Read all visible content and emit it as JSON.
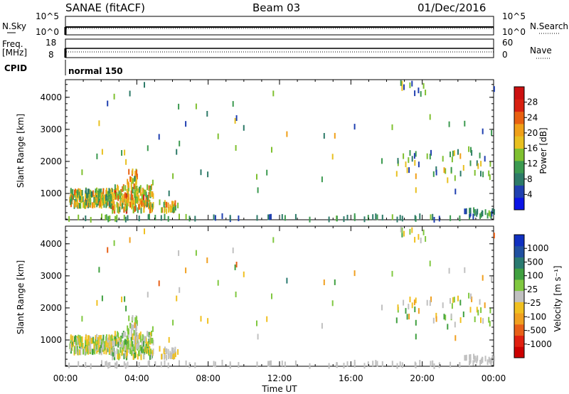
{
  "header": {
    "station": "SANAE (fitACF)",
    "beam": "Beam 03",
    "date": "01/Dec/2016"
  },
  "nsky_panel": {
    "left_label": "N.Sky",
    "left_ticks": [
      "10^5",
      "10^0"
    ],
    "right_label": "N.Search",
    "right_ticks": [
      "10^5",
      "10^0"
    ],
    "colors": {
      "trace": "#000000"
    }
  },
  "freq_panel": {
    "left_label_line1": "Freq.",
    "left_label_line2": "[MHz]",
    "left_ticks": [
      "18",
      "8"
    ],
    "right_label": "Nave",
    "right_ticks": [
      "60",
      "0"
    ]
  },
  "cpid_panel": {
    "label": "CPID",
    "mode": "normal 150"
  },
  "x_axis": {
    "label": "Time UT",
    "ticks": [
      "00:00",
      "04:00",
      "08:00",
      "12:00",
      "16:00",
      "20:00",
      "00:00"
    ]
  },
  "y_axis": {
    "label": "Slant Range [km]",
    "ticks": [
      "1000",
      "2000",
      "3000",
      "4000"
    ]
  },
  "power_scale": {
    "label": "Power [dB]",
    "ticks": [
      "4",
      "8",
      "12",
      "16",
      "20",
      "24",
      "28"
    ],
    "colors": [
      "#0a14e6",
      "#2040b0",
      "#2d7a68",
      "#3c9a50",
      "#7fc030",
      "#e8c020",
      "#f0a018",
      "#e86010",
      "#d82010",
      "#cc1010"
    ]
  },
  "velocity_scale": {
    "label": "Velocity [m s⁻¹]",
    "ticks": [
      "1000",
      "500",
      "100",
      "25",
      "-25",
      "-100",
      "-500",
      "-1000"
    ],
    "colors": [
      "#1030c0",
      "#2050a0",
      "#2a7a70",
      "#40a040",
      "#80c840",
      "#c0c0c0",
      "#f0c020",
      "#f0a020",
      "#e86018",
      "#e02010",
      "#cc0000"
    ]
  },
  "chart_data": [
    {
      "type": "scatter",
      "title": "Power",
      "xlabel": "Time UT",
      "ylabel": "Slant Range [km]",
      "xlim": [
        0,
        24
      ],
      "ylim": [
        180,
        4550
      ],
      "note_units": "x in hours UT, y in km, value in dB",
      "clusters": [
        {
          "x": [
            0.2,
            2.6
          ],
          "y": [
            600,
            1100
          ],
          "value": [
            8,
            24
          ],
          "n": 220
        },
        {
          "x": [
            2.6,
            4.9
          ],
          "y": [
            450,
            1200
          ],
          "value": [
            10,
            26
          ],
          "n": 200
        },
        {
          "x": [
            3.4,
            4.0
          ],
          "y": [
            1200,
            1700
          ],
          "value": [
            14,
            24
          ],
          "n": 25
        },
        {
          "x": [
            5.2,
            6.3
          ],
          "y": [
            450,
            750
          ],
          "value": [
            12,
            24
          ],
          "n": 30
        },
        {
          "x": [
            0,
            24
          ],
          "y": [
            180,
            300
          ],
          "value": [
            4,
            16
          ],
          "n": 70
        },
        {
          "x": [
            0,
            24
          ],
          "y": [
            1000,
            4400
          ],
          "value": [
            4,
            20
          ],
          "n": 60
        },
        {
          "x": [
            18.3,
            24
          ],
          "y": [
            1500,
            2400
          ],
          "value": [
            4,
            20
          ],
          "n": 45
        },
        {
          "x": [
            18.5,
            20.2
          ],
          "y": [
            4100,
            4450
          ],
          "value": [
            4,
            18
          ],
          "n": 10
        },
        {
          "x": [
            22.3,
            24
          ],
          "y": [
            250,
            500
          ],
          "value": [
            4,
            14
          ],
          "n": 25
        }
      ]
    },
    {
      "type": "scatter",
      "title": "Velocity",
      "xlabel": "Time UT",
      "ylabel": "Slant Range [km]",
      "xlim": [
        0,
        24
      ],
      "ylim": [
        180,
        4550
      ],
      "note_units": "x in hours UT, y in km, value in m/s",
      "clusters": [
        {
          "x": [
            0.2,
            2.6
          ],
          "y": [
            600,
            1100
          ],
          "value": [
            -300,
            400
          ],
          "n": 220
        },
        {
          "x": [
            2.6,
            4.9
          ],
          "y": [
            450,
            1200
          ],
          "value": [
            -300,
            500
          ],
          "n": 200
        },
        {
          "x": [
            3.4,
            4.0
          ],
          "y": [
            1200,
            1700
          ],
          "value": [
            -100,
            300
          ],
          "n": 25
        },
        {
          "x": [
            5.2,
            6.3
          ],
          "y": [
            450,
            750
          ],
          "value": [
            -200,
            100
          ],
          "n": 30
        },
        {
          "x": [
            0,
            24
          ],
          "y": [
            180,
            300
          ],
          "value": [
            -100,
            100
          ],
          "n": 70
        },
        {
          "x": [
            0,
            24
          ],
          "y": [
            1000,
            4400
          ],
          "value": [
            -600,
            600
          ],
          "n": 60
        },
        {
          "x": [
            18.3,
            24
          ],
          "y": [
            1500,
            2400
          ],
          "value": [
            -500,
            500
          ],
          "n": 45
        },
        {
          "x": [
            18.5,
            20.2
          ],
          "y": [
            4100,
            4450
          ],
          "value": [
            -300,
            300
          ],
          "n": 10
        },
        {
          "x": [
            22.3,
            24
          ],
          "y": [
            250,
            500
          ],
          "value": [
            -50,
            50
          ],
          "n": 25
        }
      ]
    }
  ]
}
